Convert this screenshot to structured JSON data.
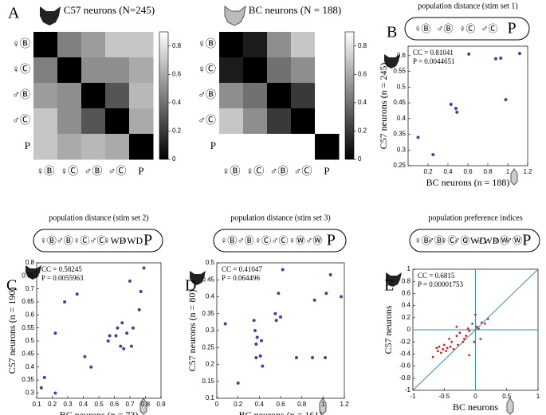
{
  "chart_data": [
    {
      "type": "heatmap",
      "label": "A",
      "title": "C57 neurons (N=245)",
      "rows": [
        "♀Ⓑ",
        "♀Ⓒ",
        "♂Ⓑ",
        "♂Ⓒ",
        "P"
      ],
      "columns": [
        "♀Ⓑ",
        "♀Ⓒ",
        "♂Ⓑ",
        "♂Ⓒ",
        "P"
      ],
      "values": [
        [
          0,
          0.45,
          0.55,
          0.7,
          0.7
        ],
        [
          0.45,
          0,
          0.5,
          0.5,
          0.6
        ],
        [
          0.55,
          0.5,
          0,
          0.3,
          0.65
        ],
        [
          0.7,
          0.5,
          0.3,
          0,
          0.6
        ],
        [
          0.7,
          0.6,
          0.65,
          0.6,
          0
        ]
      ],
      "zlim": [
        0,
        0.9
      ],
      "zticks": [
        0,
        0.2,
        0.4,
        0.6,
        0.8
      ]
    },
    {
      "type": "heatmap",
      "title": "BC neurons (N = 188)",
      "rows": [
        "♀Ⓑ",
        "♀Ⓒ",
        "♂Ⓑ",
        "♂Ⓒ",
        "P"
      ],
      "columns": [
        "♀Ⓑ",
        "♀Ⓒ",
        "♂Ⓑ",
        "♂Ⓒ",
        "P"
      ],
      "values": [
        [
          0,
          0.1,
          0.5,
          0.7,
          0.9
        ],
        [
          0.1,
          0,
          0.4,
          0.5,
          0.9
        ],
        [
          0.5,
          0.4,
          0,
          0.2,
          0.9
        ],
        [
          0.7,
          0.5,
          0.2,
          0,
          0.9
        ],
        [
          0.9,
          0.9,
          0.9,
          0.9,
          0
        ]
      ],
      "zlim": [
        0,
        0.9
      ],
      "zticks": [
        0,
        0.2,
        0.4,
        0.6,
        0.8
      ]
    },
    {
      "type": "scatter",
      "label": "B",
      "title": "population distance (stim set 1)",
      "stimuli": [
        "♀Ⓑ",
        "♂Ⓑ",
        "♀Ⓒ",
        "♂Ⓒ",
        "P"
      ],
      "cc": "CC = 0.81041",
      "p": "P = 0.0044651",
      "x_label": "BC neurons (n = 188)",
      "y_label": "C57 neurons (n = 245)",
      "color": "#4040b0",
      "x": [
        0.1,
        0.25,
        0.43,
        0.48,
        0.49,
        0.61,
        0.88,
        0.93,
        0.98,
        1.12
      ],
      "y": [
        0.34,
        0.285,
        0.445,
        0.432,
        0.42,
        0.605,
        0.59,
        0.592,
        0.46,
        0.607
      ],
      "xlim": [
        0,
        1.2
      ],
      "xticks": [
        0.2,
        0.4,
        0.6,
        0.8,
        1,
        1.2
      ],
      "ylim": [
        0.25,
        0.63
      ],
      "yticks": [
        0.25,
        0.3,
        0.35,
        0.4,
        0.45,
        0.5,
        0.55,
        0.6
      ]
    },
    {
      "type": "scatter",
      "label": "C",
      "title": "population distance (stim set 2)",
      "stimuli": [
        "♀Ⓑ",
        "♂Ⓑ",
        "♀Ⓒ",
        "♂Ⓒ",
        "♀WD",
        "♂WD",
        "P"
      ],
      "cc": "CC = 0.58245",
      "p": "P = 0.0055963",
      "x_label": "BC neurons (n = 73)",
      "y_label": "C57 neurons (n = 190)",
      "color": "#4040b0",
      "x": [
        0.13,
        0.15,
        0.22,
        0.22,
        0.28,
        0.36,
        0.41,
        0.45,
        0.56,
        0.57,
        0.61,
        0.62,
        0.64,
        0.65,
        0.66,
        0.68,
        0.7,
        0.71,
        0.72,
        0.76,
        0.77,
        0.79
      ],
      "y": [
        0.32,
        0.36,
        0.53,
        0.3,
        0.65,
        0.68,
        0.44,
        0.4,
        0.5,
        0.52,
        0.52,
        0.55,
        0.48,
        0.57,
        0.47,
        0.53,
        0.73,
        0.48,
        0.55,
        0.62,
        0.69,
        0.78
      ],
      "xlim": [
        0.1,
        0.9
      ],
      "xticks": [
        0.1,
        0.2,
        0.3,
        0.4,
        0.5,
        0.6,
        0.7,
        0.8,
        0.9
      ],
      "ylim": [
        0.28,
        0.8
      ],
      "yticks": [
        0.3,
        0.35,
        0.4,
        0.45,
        0.5,
        0.55,
        0.6,
        0.65,
        0.7,
        0.75,
        0.8
      ]
    },
    {
      "type": "scatter",
      "label": "D",
      "title": "population distance (stim set 3)",
      "stimuli": [
        "♀Ⓑ",
        "♂Ⓑ",
        "♀Ⓒ",
        "♂Ⓒ",
        "♀Ⓦ",
        "♂Ⓦ",
        "P"
      ],
      "cc": "CC = 0.41047",
      "p": "P = 0.064496",
      "x_label": "BC neurons (n = 161)",
      "y_label": "C57 neurons (n = 80)",
      "color": "#4040b0",
      "x": [
        0.08,
        0.2,
        0.35,
        0.36,
        0.37,
        0.37,
        0.38,
        0.41,
        0.42,
        0.43,
        0.55,
        0.56,
        0.58,
        0.6,
        0.62,
        0.75,
        0.9,
        0.92,
        1.02,
        1.03,
        1.07,
        1.17
      ],
      "y": [
        0.32,
        0.145,
        0.33,
        0.3,
        0.26,
        0.22,
        0.28,
        0.225,
        0.27,
        0.195,
        0.35,
        0.33,
        0.41,
        0.34,
        0.48,
        0.22,
        0.22,
        0.39,
        0.22,
        0.41,
        0.465,
        0.4
      ],
      "xlim": [
        0,
        1.2
      ],
      "xticks": [
        0,
        0.2,
        0.4,
        0.6,
        0.8,
        1,
        1.2
      ],
      "ylim": [
        0.1,
        0.5
      ],
      "yticks": [
        0.1,
        0.15,
        0.2,
        0.25,
        0.3,
        0.35,
        0.4,
        0.45,
        0.5
      ]
    },
    {
      "type": "scatter",
      "label": "E",
      "title": "population preference indices",
      "stimuli": [
        "♀Ⓑ",
        "♂Ⓑ",
        "♀Ⓒ",
        "♂Ⓒ",
        "♀WD",
        "♂WD",
        "♀Ⓦ",
        "♂Ⓦ",
        "P"
      ],
      "cc": "CC = 0.6815",
      "p": "P = 0.00001753",
      "x_label": "BC neurons",
      "y_label": "C57 neurons",
      "color": "#e02020",
      "reference_lines": true,
      "x": [
        -0.68,
        -0.62,
        -0.6,
        -0.58,
        -0.55,
        -0.52,
        -0.5,
        -0.47,
        -0.45,
        -0.42,
        -0.4,
        -0.38,
        -0.35,
        -0.3,
        -0.28,
        -0.25,
        -0.2,
        -0.18,
        -0.15,
        -0.12,
        -0.1,
        -0.05,
        -0.02,
        0,
        0.02,
        0.05,
        0.08,
        0.1,
        0.15,
        0.2,
        -0.3,
        -0.1
      ],
      "y": [
        -0.45,
        -0.3,
        -0.35,
        -0.28,
        -0.38,
        -0.32,
        -0.25,
        -0.35,
        -0.3,
        -0.15,
        -0.28,
        -0.2,
        -0.32,
        -0.1,
        -0.25,
        -0.05,
        -0.2,
        -0.15,
        -0.1,
        0.02,
        -0.42,
        0.1,
        -0.2,
        0.25,
        0.05,
        0.02,
        -0.15,
        0.12,
        0.1,
        0.18,
        0.05,
        -0.02
      ],
      "xlim": [
        -1,
        1
      ],
      "xticks": [
        -1,
        -0.5,
        0,
        0.5,
        1
      ],
      "ylim": [
        -1,
        1
      ],
      "yticks": [
        -1,
        -0.8,
        -0.6,
        -0.4,
        -0.2,
        0,
        0.2,
        0.4,
        0.6,
        0.8,
        1
      ]
    }
  ]
}
